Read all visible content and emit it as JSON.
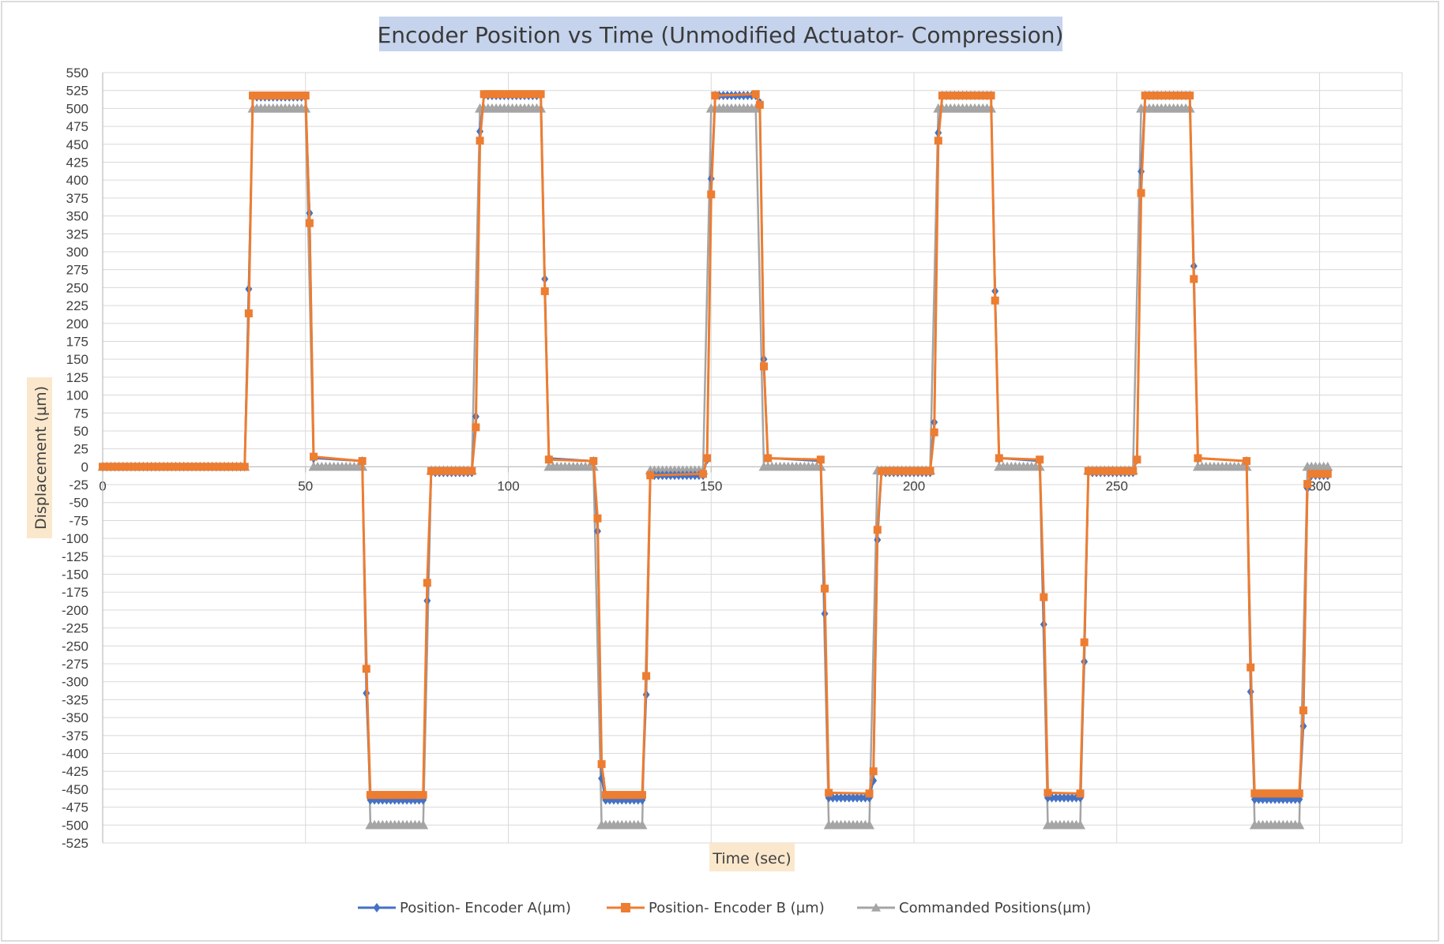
{
  "chart_data": {
    "type": "line",
    "title": "Encoder Position vs Time (Unmodified Actuator- Compression)",
    "xlabel": "Time (sec)",
    "ylabel": "Displacement  (µm)",
    "xlim": [
      0,
      320
    ],
    "ylim": [
      -525,
      550
    ],
    "x_ticks": [
      0,
      50,
      100,
      150,
      200,
      250,
      300
    ],
    "y_ticks": [
      550,
      525,
      500,
      475,
      450,
      425,
      400,
      375,
      350,
      325,
      300,
      275,
      250,
      225,
      200,
      175,
      150,
      125,
      100,
      75,
      50,
      25,
      0,
      -25,
      -50,
      -75,
      -100,
      -125,
      -150,
      -175,
      -200,
      -225,
      -250,
      -275,
      -300,
      -325,
      -350,
      -375,
      -400,
      -425,
      -450,
      -475,
      -500,
      -525
    ],
    "grid": true,
    "legend_position": "bottom",
    "series": [
      {
        "name": "Position- Encoder A(µm)",
        "color": "#4472c4",
        "marker": "diamond",
        "points": [
          [
            0,
            0
          ],
          [
            25,
            0
          ],
          [
            35,
            0
          ],
          [
            36,
            248
          ],
          [
            37,
            516
          ],
          [
            50,
            516
          ],
          [
            51,
            354
          ],
          [
            52,
            12
          ],
          [
            64,
            8
          ],
          [
            65,
            -316
          ],
          [
            66,
            -465
          ],
          [
            79,
            -465
          ],
          [
            80,
            -187
          ],
          [
            81,
            -8
          ],
          [
            91,
            -8
          ],
          [
            92,
            70
          ],
          [
            93,
            468
          ],
          [
            94,
            518
          ],
          [
            108,
            518
          ],
          [
            109,
            262
          ],
          [
            110,
            12
          ],
          [
            121,
            8
          ],
          [
            122,
            -90
          ],
          [
            123,
            -435
          ],
          [
            124,
            -465
          ],
          [
            133,
            -465
          ],
          [
            134,
            -318
          ],
          [
            135,
            -12
          ],
          [
            148,
            -12
          ],
          [
            149,
            10
          ],
          [
            150,
            402
          ],
          [
            151,
            518
          ],
          [
            161,
            518
          ],
          [
            162,
            508
          ],
          [
            163,
            150
          ],
          [
            164,
            12
          ],
          [
            177,
            8
          ],
          [
            178,
            -205
          ],
          [
            179,
            -462
          ],
          [
            189,
            -462
          ],
          [
            190,
            -438
          ],
          [
            191,
            -102
          ],
          [
            192,
            -8
          ],
          [
            204,
            -8
          ],
          [
            205,
            62
          ],
          [
            206,
            466
          ],
          [
            207,
            518
          ],
          [
            219,
            518
          ],
          [
            220,
            245
          ],
          [
            221,
            12
          ],
          [
            231,
            8
          ],
          [
            232,
            -220
          ],
          [
            233,
            -462
          ],
          [
            241,
            -462
          ],
          [
            242,
            -272
          ],
          [
            243,
            -8
          ],
          [
            254,
            -8
          ],
          [
            255,
            10
          ],
          [
            256,
            412
          ],
          [
            257,
            518
          ],
          [
            268,
            518
          ],
          [
            269,
            280
          ],
          [
            270,
            12
          ],
          [
            282,
            8
          ],
          [
            283,
            -314
          ],
          [
            284,
            -464
          ],
          [
            295,
            -464
          ],
          [
            296,
            -362
          ],
          [
            297,
            -30
          ],
          [
            298,
            -12
          ],
          [
            302,
            -12
          ]
        ]
      },
      {
        "name": "Position- Encoder B (µm)",
        "color": "#ed7d31",
        "marker": "square",
        "points": [
          [
            0,
            0
          ],
          [
            25,
            0
          ],
          [
            35,
            0
          ],
          [
            36,
            214
          ],
          [
            37,
            518
          ],
          [
            50,
            518
          ],
          [
            51,
            340
          ],
          [
            52,
            14
          ],
          [
            64,
            8
          ],
          [
            65,
            -282
          ],
          [
            66,
            -458
          ],
          [
            79,
            -458
          ],
          [
            80,
            -162
          ],
          [
            81,
            -6
          ],
          [
            91,
            -6
          ],
          [
            92,
            55
          ],
          [
            93,
            455
          ],
          [
            94,
            520
          ],
          [
            108,
            520
          ],
          [
            109,
            245
          ],
          [
            110,
            10
          ],
          [
            121,
            8
          ],
          [
            122,
            -72
          ],
          [
            123,
            -415
          ],
          [
            124,
            -458
          ],
          [
            133,
            -458
          ],
          [
            134,
            -292
          ],
          [
            135,
            -12
          ],
          [
            148,
            -10
          ],
          [
            149,
            12
          ],
          [
            150,
            380
          ],
          [
            151,
            518
          ],
          [
            161,
            520
          ],
          [
            162,
            505
          ],
          [
            163,
            140
          ],
          [
            164,
            12
          ],
          [
            177,
            10
          ],
          [
            178,
            -170
          ],
          [
            179,
            -455
          ],
          [
            189,
            -456
          ],
          [
            190,
            -425
          ],
          [
            191,
            -88
          ],
          [
            192,
            -6
          ],
          [
            204,
            -6
          ],
          [
            205,
            48
          ],
          [
            206,
            455
          ],
          [
            207,
            518
          ],
          [
            219,
            518
          ],
          [
            220,
            232
          ],
          [
            221,
            12
          ],
          [
            231,
            10
          ],
          [
            232,
            -182
          ],
          [
            233,
            -455
          ],
          [
            241,
            -456
          ],
          [
            242,
            -245
          ],
          [
            243,
            -6
          ],
          [
            254,
            -6
          ],
          [
            255,
            10
          ],
          [
            256,
            382
          ],
          [
            257,
            518
          ],
          [
            268,
            518
          ],
          [
            269,
            262
          ],
          [
            270,
            12
          ],
          [
            282,
            8
          ],
          [
            283,
            -280
          ],
          [
            284,
            -456
          ],
          [
            295,
            -456
          ],
          [
            296,
            -340
          ],
          [
            297,
            -24
          ],
          [
            298,
            -10
          ],
          [
            302,
            -10
          ]
        ]
      },
      {
        "name": "Commanded Positions(µm)",
        "color": "#a5a5a5",
        "marker": "triangle",
        "points": [
          [
            0,
            0
          ],
          [
            35,
            0
          ],
          [
            37,
            500
          ],
          [
            50,
            500
          ],
          [
            52,
            0
          ],
          [
            64,
            0
          ],
          [
            66,
            -500
          ],
          [
            79,
            -500
          ],
          [
            81,
            -5
          ],
          [
            91,
            -5
          ],
          [
            93,
            500
          ],
          [
            108,
            500
          ],
          [
            110,
            0
          ],
          [
            121,
            0
          ],
          [
            123,
            -500
          ],
          [
            133,
            -500
          ],
          [
            135,
            -5
          ],
          [
            148,
            -5
          ],
          [
            150,
            500
          ],
          [
            161,
            500
          ],
          [
            163,
            0
          ],
          [
            177,
            0
          ],
          [
            179,
            -500
          ],
          [
            189,
            -500
          ],
          [
            191,
            -5
          ],
          [
            204,
            -5
          ],
          [
            206,
            500
          ],
          [
            219,
            500
          ],
          [
            221,
            0
          ],
          [
            231,
            0
          ],
          [
            233,
            -500
          ],
          [
            241,
            -500
          ],
          [
            243,
            -5
          ],
          [
            254,
            -5
          ],
          [
            256,
            500
          ],
          [
            268,
            500
          ],
          [
            270,
            0
          ],
          [
            282,
            0
          ],
          [
            284,
            -500
          ],
          [
            295,
            -500
          ],
          [
            297,
            0
          ],
          [
            302,
            0
          ]
        ]
      }
    ]
  }
}
